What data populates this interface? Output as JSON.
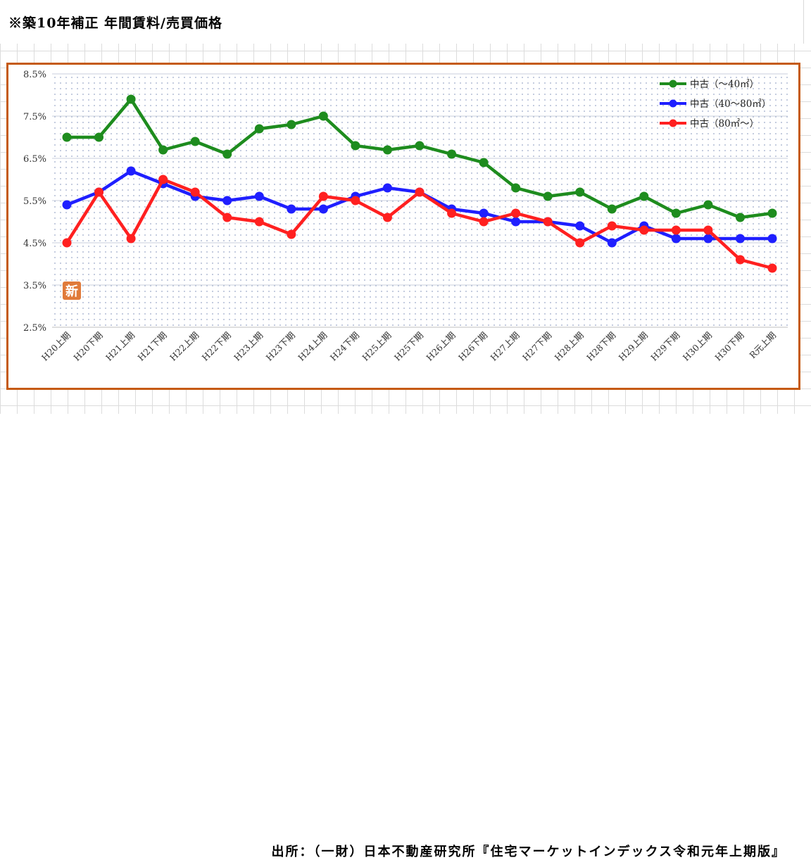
{
  "page": {
    "title": "※築10年補正 年間賃料/売買価格",
    "source": "出所：（一財）日本不動産研究所『住宅マーケットインデックス令和元年上期版』",
    "badge": "新"
  },
  "colors": {
    "frame": "#c55a11",
    "green": "#1e8c1e",
    "blue": "#1f1fff",
    "red": "#ff2020",
    "badge": "#e07a3a"
  },
  "chart_data": {
    "type": "line",
    "title": "",
    "xlabel": "",
    "ylabel": "",
    "ylim": [
      2.5,
      8.5
    ],
    "y_ticks": [
      "2.5%",
      "3.5%",
      "4.5%",
      "5.5%",
      "6.5%",
      "7.5%",
      "8.5%"
    ],
    "grid": "dotted",
    "legend_position": "top-right",
    "categories": [
      "H20上期",
      "H20下期",
      "H21上期",
      "H21下期",
      "H22上期",
      "H22下期",
      "H23上期",
      "H23下期",
      "H24上期",
      "H24下期",
      "H25上期",
      "H25下期",
      "H26上期",
      "H26下期",
      "H27上期",
      "H27下期",
      "H28上期",
      "H28下期",
      "H29上期",
      "H29下期",
      "H30上期",
      "H30下期",
      "R元上期"
    ],
    "series": [
      {
        "name": "中古（～40㎡）",
        "color": "#1e8c1e",
        "values": [
          7.0,
          7.0,
          7.9,
          6.7,
          6.9,
          6.6,
          7.2,
          7.3,
          7.5,
          6.8,
          6.7,
          6.8,
          6.6,
          6.4,
          5.8,
          5.6,
          5.7,
          5.3,
          5.6,
          5.2,
          5.4,
          5.1,
          5.2
        ]
      },
      {
        "name": "中古（40～80㎡）",
        "color": "#1f1fff",
        "values": [
          5.4,
          5.7,
          6.2,
          5.9,
          5.6,
          5.5,
          5.6,
          5.3,
          5.3,
          5.6,
          5.8,
          5.7,
          5.3,
          5.2,
          5.0,
          5.0,
          4.9,
          4.5,
          4.9,
          4.6,
          4.6,
          4.6,
          4.6
        ]
      },
      {
        "name": "中古（80㎡～）",
        "color": "#ff2020",
        "values": [
          4.5,
          5.7,
          4.6,
          6.0,
          5.7,
          5.1,
          5.0,
          4.7,
          5.6,
          5.5,
          5.1,
          5.7,
          5.2,
          5.0,
          5.2,
          5.0,
          4.5,
          4.9,
          4.8,
          4.8,
          4.8,
          4.1,
          3.9
        ]
      }
    ]
  }
}
